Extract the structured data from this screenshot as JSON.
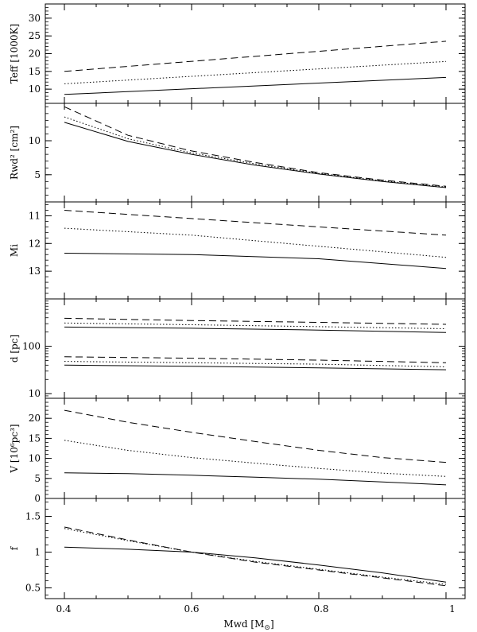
{
  "figure": {
    "xlabel": "Mwd [M",
    "xlabel_sub": "⊙",
    "xlabel_tail": "]",
    "x_ticks": [
      "0.4",
      "0.6",
      "0.8",
      "1"
    ]
  },
  "chart_data": [
    {
      "type": "line",
      "ylabel": "Teff [1000K]",
      "xlim": [
        0.37,
        1.03
      ],
      "ylim": [
        6,
        34
      ],
      "y_ticks": [
        10,
        15,
        20,
        25,
        30
      ],
      "y_tick_labels": [
        "10",
        "15",
        "20",
        "25",
        "30"
      ],
      "x": [
        0.4,
        1.0
      ],
      "series": [
        {
          "style": "solid",
          "values": [
            8.5,
            13.3
          ]
        },
        {
          "style": "dotted",
          "values": [
            11.5,
            17.8
          ]
        },
        {
          "style": "dashed",
          "values": [
            15.0,
            23.5
          ]
        }
      ]
    },
    {
      "type": "line",
      "ylabel": "Rwd² [cm²]",
      "xlim": [
        0.37,
        1.03
      ],
      "ylim": [
        1,
        15.5
      ],
      "y_ticks": [
        5,
        10
      ],
      "y_tick_labels": [
        "5",
        "10"
      ],
      "x": [
        0.4,
        0.5,
        0.6,
        0.7,
        0.8,
        0.9,
        1.0
      ],
      "series": [
        {
          "style": "solid",
          "values": [
            12.7,
            9.9,
            8.0,
            6.4,
            5.1,
            4.0,
            3.1
          ]
        },
        {
          "style": "dotted",
          "values": [
            13.5,
            10.3,
            8.2,
            6.6,
            5.2,
            4.1,
            3.2
          ]
        },
        {
          "style": "dashed",
          "values": [
            15.0,
            10.8,
            8.5,
            6.8,
            5.3,
            4.2,
            3.3
          ]
        }
      ]
    },
    {
      "type": "line",
      "ylabel": "Mi",
      "ylabel_note": "axis inverted",
      "xlim": [
        0.37,
        1.03
      ],
      "ylim": [
        14.0,
        10.5
      ],
      "y_ticks": [
        11,
        12,
        13
      ],
      "y_tick_labels": [
        "11",
        "12",
        "13"
      ],
      "x": [
        0.4,
        0.6,
        0.8,
        1.0
      ],
      "series": [
        {
          "style": "solid",
          "values": [
            12.35,
            12.4,
            12.55,
            12.9
          ]
        },
        {
          "style": "dotted",
          "values": [
            11.45,
            11.7,
            12.1,
            12.5
          ]
        },
        {
          "style": "dashed",
          "values": [
            10.8,
            11.1,
            11.4,
            11.7
          ]
        }
      ]
    },
    {
      "type": "line",
      "ylabel": "d [pc]",
      "y_scale": "log",
      "xlim": [
        0.37,
        1.03
      ],
      "ylim": [
        8,
        1000
      ],
      "y_ticks": [
        10,
        100
      ],
      "y_tick_labels": [
        "10",
        "100"
      ],
      "x": [
        0.4,
        0.6,
        0.8,
        1.0
      ],
      "series": [
        {
          "style": "solid",
          "values": [
            255,
            240,
            220,
            195
          ]
        },
        {
          "style": "dotted",
          "values": [
            310,
            285,
            260,
            235
          ]
        },
        {
          "style": "dashed",
          "values": [
            390,
            350,
            320,
            290
          ]
        },
        {
          "style": "solid",
          "values": [
            40,
            38,
            35,
            32
          ]
        },
        {
          "style": "dotted",
          "values": [
            48,
            45,
            42,
            37
          ]
        },
        {
          "style": "dashed",
          "values": [
            60,
            56,
            51,
            45
          ]
        }
      ]
    },
    {
      "type": "line",
      "ylabel": "V [10⁶pc³]",
      "xlim": [
        0.37,
        1.03
      ],
      "ylim": [
        0,
        25
      ],
      "y_ticks": [
        0,
        5,
        10,
        15,
        20
      ],
      "y_tick_labels": [
        "0",
        "5",
        "10",
        "15",
        "20"
      ],
      "x": [
        0.4,
        0.5,
        0.6,
        0.7,
        0.8,
        0.9,
        1.0
      ],
      "series": [
        {
          "style": "solid",
          "values": [
            6.4,
            6.2,
            5.8,
            5.3,
            4.8,
            4.1,
            3.4
          ]
        },
        {
          "style": "dotted",
          "values": [
            14.5,
            12.0,
            10.2,
            8.8,
            7.5,
            6.3,
            5.5
          ]
        },
        {
          "style": "dashed",
          "values": [
            22.0,
            19.0,
            16.5,
            14.2,
            12.0,
            10.2,
            9.0
          ]
        }
      ]
    },
    {
      "type": "line",
      "ylabel": "f",
      "xlim": [
        0.37,
        1.03
      ],
      "ylim": [
        0.35,
        1.75
      ],
      "y_ticks": [
        0.5,
        1,
        1.5
      ],
      "y_tick_labels": [
        "0.5",
        "1",
        "1.5"
      ],
      "x": [
        0.4,
        0.5,
        0.6,
        0.7,
        0.8,
        0.9,
        1.0
      ],
      "series": [
        {
          "style": "solid",
          "values": [
            1.07,
            1.04,
            1.0,
            0.92,
            0.82,
            0.71,
            0.58
          ]
        },
        {
          "style": "dotted",
          "values": [
            1.33,
            1.16,
            1.0,
            0.87,
            0.76,
            0.65,
            0.55
          ]
        },
        {
          "style": "dashed",
          "values": [
            1.35,
            1.17,
            1.0,
            0.86,
            0.75,
            0.64,
            0.53
          ]
        }
      ]
    }
  ]
}
